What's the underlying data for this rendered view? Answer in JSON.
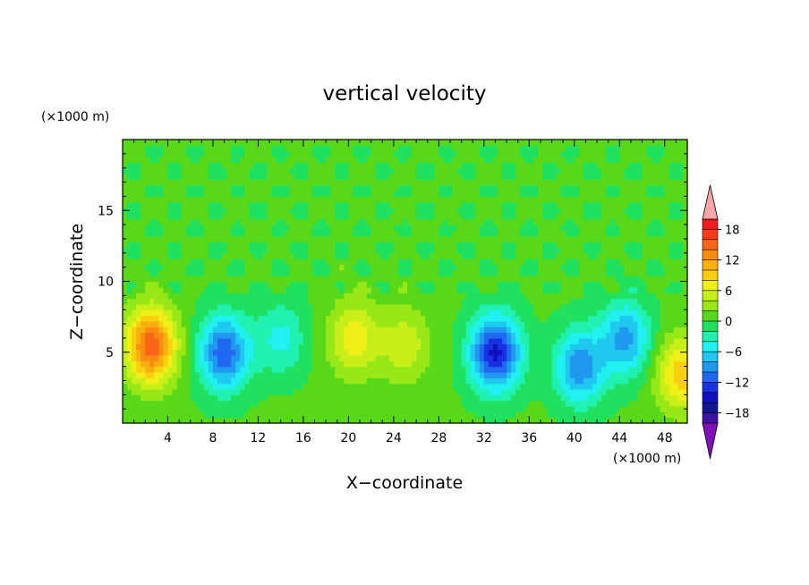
{
  "chart_data": {
    "type": "heatmap",
    "title": "vertical velocity",
    "xlabel": "X−coordinate",
    "ylabel": "Z−coordinate",
    "x_unit": "(×1000 m)",
    "z_unit": "(×1000 m)",
    "xlim": [
      0,
      50
    ],
    "zlim": [
      0,
      20
    ],
    "x_ticks": [
      4,
      8,
      12,
      16,
      20,
      24,
      28,
      32,
      36,
      40,
      44,
      48
    ],
    "z_ticks": [
      5,
      10,
      15
    ],
    "x_tick_labels": [
      "4",
      "8",
      "12",
      "16",
      "20",
      "24",
      "28",
      "32",
      "36",
      "40",
      "44",
      "48"
    ],
    "z_tick_labels": [
      "5",
      "10",
      "15"
    ],
    "levels": [
      -20,
      -18,
      -16,
      -14,
      -12,
      -10,
      -8,
      -6,
      -4,
      -2,
      0,
      2,
      4,
      6,
      8,
      10,
      12,
      14,
      16,
      18,
      20
    ],
    "colorbar_labels": [
      {
        "value": 18,
        "text": "18"
      },
      {
        "value": 12,
        "text": "12"
      },
      {
        "value": 6,
        "text": "6"
      },
      {
        "value": 0,
        "text": "0"
      },
      {
        "value": -6,
        "text": "−6"
      },
      {
        "value": -12,
        "text": "−12"
      },
      {
        "value": -18,
        "text": "−18"
      }
    ],
    "colors": [
      "#f8a6a6",
      "#ee1c1c",
      "#f43c18",
      "#f86418",
      "#f88c10",
      "#f8b010",
      "#f8d010",
      "#f0f018",
      "#c8f018",
      "#98e818",
      "#58d818",
      "#20e060",
      "#20f0b0",
      "#20f0f0",
      "#20c8f0",
      "#2098f0",
      "#2068f0",
      "#1830e0",
      "#1010c0",
      "#101890",
      "#4010a0",
      "#8010b8"
    ],
    "features": [
      {
        "x": 2.5,
        "z": 5.5,
        "w": 15.0
      },
      {
        "x": 20.5,
        "z": 6.0,
        "w": 7.0
      },
      {
        "x": 25.0,
        "z": 5.5,
        "w": 5.0
      },
      {
        "x": 49.5,
        "z": 3.5,
        "w": 9.0
      },
      {
        "x": 9.0,
        "z": 5.0,
        "w": -12.0
      },
      {
        "x": 33.0,
        "z": 5.0,
        "w": -15.0
      },
      {
        "x": 40.5,
        "z": 4.0,
        "w": -10.0
      },
      {
        "x": 44.5,
        "z": 6.0,
        "w": -9.0
      },
      {
        "x": 14.0,
        "z": 6.0,
        "w": -5.0
      }
    ]
  }
}
